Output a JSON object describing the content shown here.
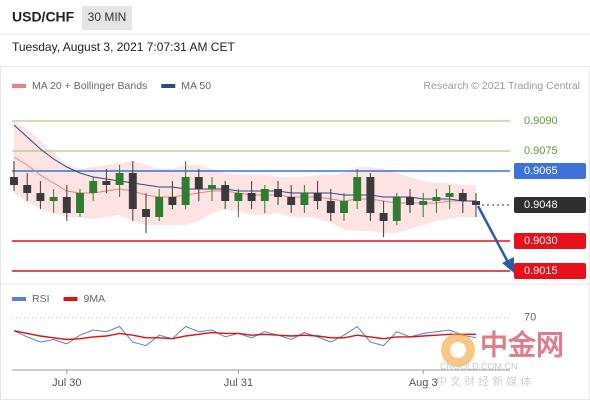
{
  "header": {
    "symbol": "USD/CHF",
    "timeframe": "30 MIN",
    "timestamp": "Tuesday, August 3, 2021 7:07:31 AM CET"
  },
  "watermark": {
    "name": "中金网",
    "site": "CNGOLD.COM.CN",
    "slogan": "中 文 财 经 新 媒 体"
  },
  "chart_data": [
    {
      "type": "candlestick",
      "credit": "Research © 2021 Trading Central",
      "categories": [
        null,
        null,
        null,
        null,
        "Jul 30",
        null,
        null,
        null,
        null,
        null,
        null,
        null,
        null,
        null,
        null,
        null,
        null,
        "Jul 31",
        null,
        null,
        null,
        null,
        null,
        null,
        null,
        null,
        null,
        null,
        null,
        null,
        null,
        "Aug 3",
        null,
        null,
        null,
        null
      ],
      "candles": [
        [
          0.9062,
          0.907,
          0.9055,
          0.9058
        ],
        [
          0.9058,
          0.9064,
          0.905,
          0.9054
        ],
        [
          0.9054,
          0.906,
          0.9046,
          0.905
        ],
        [
          0.905,
          0.9056,
          0.9044,
          0.9052
        ],
        [
          0.9052,
          0.9058,
          0.904,
          0.9044
        ],
        [
          0.9044,
          0.9056,
          0.9042,
          0.9054
        ],
        [
          0.9054,
          0.9062,
          0.905,
          0.906
        ],
        [
          0.906,
          0.9066,
          0.9054,
          0.9058
        ],
        [
          0.9058,
          0.9068,
          0.9052,
          0.9064
        ],
        [
          0.9064,
          0.907,
          0.904,
          0.9046
        ],
        [
          0.9046,
          0.9054,
          0.9034,
          0.9042
        ],
        [
          0.9042,
          0.9056,
          0.904,
          0.9052
        ],
        [
          0.9052,
          0.906,
          0.9046,
          0.9048
        ],
        [
          0.9048,
          0.907,
          0.9046,
          0.9062
        ],
        [
          0.9062,
          0.9066,
          0.905,
          0.9056
        ],
        [
          0.9056,
          0.9062,
          0.905,
          0.9058
        ],
        [
          0.9058,
          0.906,
          0.9046,
          0.905
        ],
        [
          0.905,
          0.9056,
          0.9042,
          0.9054
        ],
        [
          0.9054,
          0.906,
          0.9046,
          0.905
        ],
        [
          0.905,
          0.9058,
          0.9044,
          0.9056
        ],
        [
          0.9056,
          0.906,
          0.9048,
          0.9052
        ],
        [
          0.9052,
          0.9058,
          0.9044,
          0.9048
        ],
        [
          0.9048,
          0.9058,
          0.9044,
          0.9054
        ],
        [
          0.9054,
          0.906,
          0.9046,
          0.905
        ],
        [
          0.905,
          0.9056,
          0.904,
          0.9044
        ],
        [
          0.9044,
          0.9054,
          0.904,
          0.905
        ],
        [
          0.905,
          0.9066,
          0.9046,
          0.9062
        ],
        [
          0.9062,
          0.9064,
          0.904,
          0.9044
        ],
        [
          0.9044,
          0.905,
          0.9032,
          0.904
        ],
        [
          0.904,
          0.9054,
          0.9038,
          0.9052
        ],
        [
          0.9052,
          0.9056,
          0.9044,
          0.9048
        ],
        [
          0.9048,
          0.9054,
          0.9042,
          0.905
        ],
        [
          0.905,
          0.9056,
          0.9044,
          0.9052
        ],
        [
          0.9052,
          0.9058,
          0.9046,
          0.9054
        ],
        [
          0.9054,
          0.9056,
          0.9044,
          0.905
        ],
        [
          0.905,
          0.9054,
          0.9042,
          0.9048
        ]
      ],
      "up_color": "#2e7d32",
      "down_color": "#3a3a3a",
      "series": [
        {
          "name": "MA 20 + Bollinger Bands",
          "color": "#f08080",
          "band_color": "#fde3e1",
          "values": [
            0.9072,
            0.9068,
            0.9063,
            0.9059,
            0.9055,
            0.9054,
            0.9054,
            0.9055,
            0.9056,
            0.9055,
            0.9053,
            0.9052,
            0.9052,
            0.9053,
            0.9054,
            0.9055,
            0.9055,
            0.9054,
            0.9053,
            0.9053,
            0.9053,
            0.9052,
            0.9052,
            0.9052,
            0.9051,
            0.905,
            0.9051,
            0.9051,
            0.905,
            0.9049,
            0.9049,
            0.9049,
            0.9049,
            0.905,
            0.905,
            0.905
          ],
          "upper": [
            0.909,
            0.9086,
            0.908,
            0.9074,
            0.9068,
            0.9066,
            0.9067,
            0.9068,
            0.9069,
            0.907,
            0.9068,
            0.9066,
            0.9066,
            0.9068,
            0.9068,
            0.9066,
            0.9064,
            0.9063,
            0.9063,
            0.9063,
            0.9062,
            0.9062,
            0.9062,
            0.9063,
            0.9063,
            0.9064,
            0.9067,
            0.9067,
            0.9066,
            0.9064,
            0.9062,
            0.906,
            0.9059,
            0.9059,
            0.9058,
            0.9058
          ],
          "lower": [
            0.9054,
            0.905,
            0.9046,
            0.9044,
            0.9042,
            0.9042,
            0.9041,
            0.9042,
            0.9043,
            0.904,
            0.9038,
            0.9038,
            0.9038,
            0.9038,
            0.904,
            0.9044,
            0.9046,
            0.9045,
            0.9043,
            0.9043,
            0.9044,
            0.9042,
            0.9042,
            0.9041,
            0.9039,
            0.9036,
            0.9035,
            0.9035,
            0.9034,
            0.9034,
            0.9036,
            0.9038,
            0.904,
            0.9041,
            0.9042,
            0.9042
          ]
        },
        {
          "name": "MA 50",
          "color": "#2b4a8b",
          "values": [
            0.9088,
            0.9082,
            0.9076,
            0.9071,
            0.9067,
            0.9064,
            0.9062,
            0.9061,
            0.906,
            0.9059,
            0.9058,
            0.9057,
            0.9057,
            0.9056,
            0.9056,
            0.9056,
            0.9056,
            0.9055,
            0.9055,
            0.9055,
            0.9055,
            0.9054,
            0.9054,
            0.9054,
            0.9054,
            0.9053,
            0.9053,
            0.9053,
            0.9052,
            0.9052,
            0.9052,
            0.9051,
            0.9051,
            0.9051,
            0.905,
            0.905
          ]
        }
      ],
      "levels": [
        {
          "value": 0.909,
          "label": "0.9090",
          "color": "#8fca5c",
          "text_color": "#5a9e2f",
          "box": false,
          "style": "solid"
        },
        {
          "value": 0.9075,
          "label": "0.9075",
          "color": "#8fca5c",
          "text_color": "#5a9e2f",
          "box": false,
          "style": "solid"
        },
        {
          "value": 0.9065,
          "label": "0.9065",
          "color": "#3b73d9",
          "text_color": "#ffffff",
          "box": true,
          "style": "solid"
        },
        {
          "value": 0.9048,
          "label": "0.9048",
          "color": "#2f2f2f",
          "text_color": "#ffffff",
          "box": true,
          "style": "dotted"
        },
        {
          "value": 0.903,
          "label": "0.9030",
          "color": "#e8101a",
          "text_color": "#ffffff",
          "box": true,
          "style": "solid"
        },
        {
          "value": 0.9015,
          "label": "0.9015",
          "color": "#e8101a",
          "text_color": "#ffffff",
          "box": true,
          "style": "solid"
        }
      ],
      "ylim": [
        0.9009,
        0.91055
      ]
    },
    {
      "type": "line",
      "series": [
        {
          "name": "RSI",
          "color": "#5b7fd6",
          "values": [
            55,
            48,
            42,
            45,
            40,
            50,
            56,
            54,
            60,
            42,
            38,
            50,
            46,
            60,
            54,
            56,
            48,
            52,
            47,
            54,
            50,
            45,
            53,
            48,
            42,
            50,
            60,
            42,
            38,
            54,
            48,
            52,
            54,
            56,
            50,
            47
          ]
        },
        {
          "name": "9MA",
          "color": "#e01010",
          "values": [
            55,
            52,
            49,
            47,
            45,
            46,
            48,
            49,
            52,
            50,
            47,
            47,
            46,
            49,
            51,
            53,
            52,
            52,
            50,
            51,
            50,
            49,
            50,
            49,
            47,
            47,
            50,
            48,
            46,
            48,
            48,
            49,
            50,
            51,
            51,
            51
          ]
        }
      ],
      "ylim": [
        10,
        95
      ],
      "yticks": [
        70
      ]
    }
  ]
}
